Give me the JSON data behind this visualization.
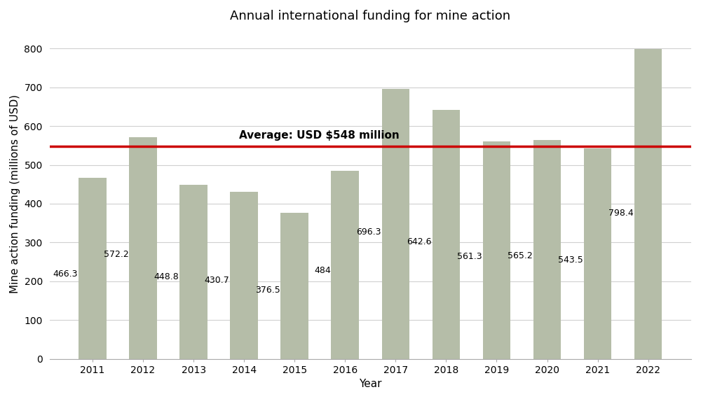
{
  "years": [
    2011,
    2012,
    2013,
    2014,
    2015,
    2016,
    2017,
    2018,
    2019,
    2020,
    2021,
    2022
  ],
  "values": [
    466.3,
    572.2,
    448.8,
    430.7,
    376.5,
    484,
    696.3,
    642.6,
    561.3,
    565.2,
    543.5,
    798.4
  ],
  "bar_color": "#b5bda8",
  "average": 548,
  "average_color": "#cc0000",
  "average_label": "Average: USD $548 million",
  "title": "Annual international funding for mine action",
  "xlabel": "Year",
  "ylabel": "Mine action funding (millions of USD)",
  "ylim": [
    0,
    850
  ],
  "yticks": [
    0,
    100,
    200,
    300,
    400,
    500,
    600,
    700,
    800
  ],
  "background_color": "#ffffff",
  "grid_color": "#d0d0d0",
  "title_fontsize": 13,
  "label_fontsize": 11,
  "tick_fontsize": 10,
  "value_fontsize": 9,
  "bar_width": 0.55
}
